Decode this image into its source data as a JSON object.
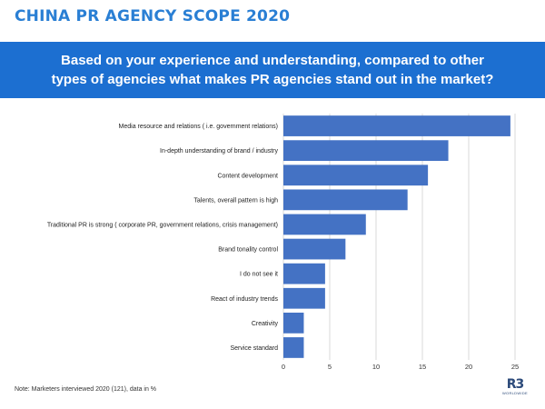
{
  "header": {
    "title": "CHINA PR AGENCY SCOPE 2020"
  },
  "question": {
    "line1": "Based on your experience and understanding, compared to other",
    "line2": "types of agencies what makes PR agencies  stand out in the market?"
  },
  "footnote": "Note: Marketers interviewed 2020 (121), data in %",
  "logo": {
    "mark": "R3",
    "sub": "WORLDWIDE"
  },
  "colors": {
    "bar": "#4472c4",
    "title": "#2a7fd4",
    "banner": "#1c6fd1",
    "grid": "#d9d9d9"
  },
  "chart_data": {
    "type": "bar",
    "orientation": "horizontal",
    "categories": [
      "Media resource and relations ( i.e. government relations)",
      "In-depth understanding of brand / industry",
      "Content development",
      "Talents, overall pattern is high",
      "Traditional PR is strong ( corporate PR, government relations, crisis management)",
      "Brand tonality control",
      "I do not see it",
      "React of industry trends",
      "Creativity",
      "Service standard"
    ],
    "values": [
      24.5,
      17.8,
      15.6,
      13.4,
      8.9,
      6.7,
      4.5,
      4.5,
      2.2,
      2.2
    ],
    "xlim": [
      0,
      25
    ],
    "xticks": [
      0,
      5,
      10,
      15,
      20,
      25
    ],
    "grid": true,
    "legend": "none"
  }
}
